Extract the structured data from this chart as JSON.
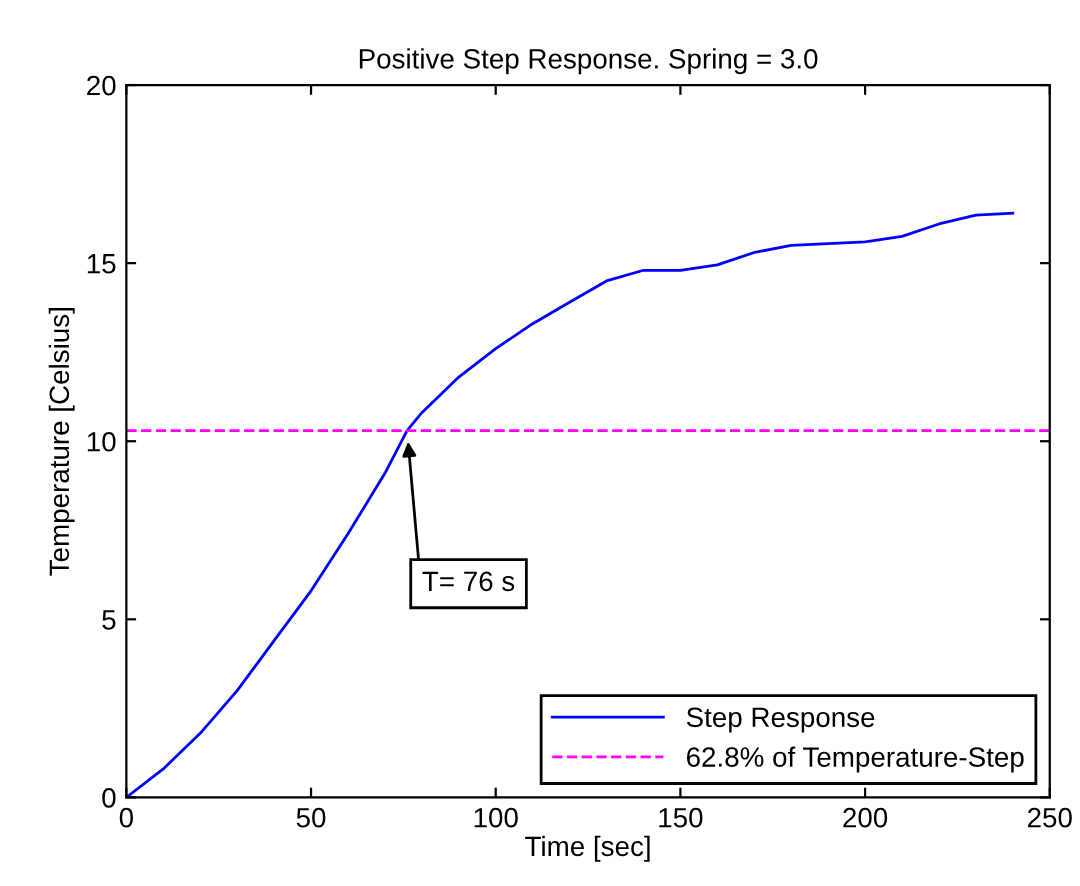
{
  "chart_data": {
    "type": "line",
    "title": "Positive Step Response. Spring = 3.0",
    "xlabel": "Time [sec]",
    "ylabel": "Temperature [Celsius]",
    "x": [
      0,
      10,
      20,
      30,
      40,
      50,
      60,
      70,
      76,
      80,
      90,
      100,
      110,
      120,
      130,
      140,
      150,
      160,
      170,
      180,
      190,
      200,
      210,
      220,
      230,
      240
    ],
    "series": [
      {
        "name": "Step Response",
        "color": "#0000ff",
        "values": [
          0,
          0.8,
          1.8,
          3.0,
          4.4,
          5.8,
          7.4,
          9.1,
          10.3,
          10.8,
          11.8,
          12.6,
          13.3,
          13.9,
          14.5,
          14.8,
          14.8,
          14.95,
          15.3,
          15.5,
          15.55,
          15.6,
          15.75,
          16.1,
          16.35,
          16.4
        ]
      }
    ],
    "ref_lines": [
      {
        "axis": "y",
        "value": 10.3,
        "label": "62.8% of Temperature-Step",
        "color": "#ff00ff",
        "line_style": "dashed"
      }
    ],
    "annotations": [
      {
        "text": "T= 76 s",
        "x": 76,
        "y": 10.3
      }
    ],
    "xlim": [
      0,
      250
    ],
    "ylim": [
      0,
      20
    ],
    "xticks": [
      0,
      50,
      100,
      150,
      200,
      250
    ],
    "yticks": [
      0,
      5,
      10,
      15,
      20
    ],
    "grid": false,
    "legend": "bottom right",
    "marker": "none",
    "line_style": "solid"
  }
}
